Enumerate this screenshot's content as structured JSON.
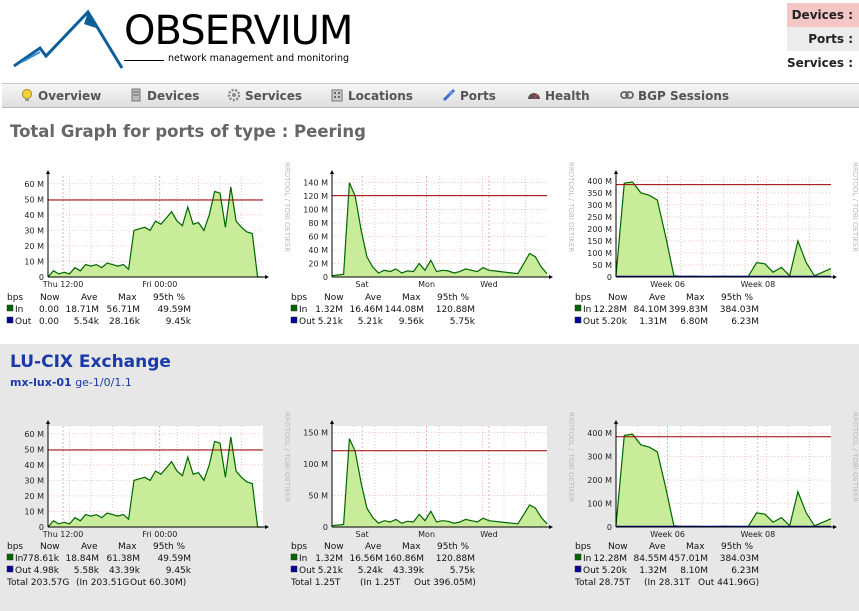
{
  "brand": {
    "name": "OBSERVIUM",
    "tagline": "network management and monitoring"
  },
  "stats": [
    {
      "label": "Devices :",
      "bg": "#f4c6c6"
    },
    {
      "label": "Ports :",
      "bg": "#ececec"
    },
    {
      "label": "Services :",
      "bg": "#ffffff"
    }
  ],
  "nav": [
    {
      "label": "Overview",
      "icon": "lightbulb-icon"
    },
    {
      "label": "Devices",
      "icon": "server-icon"
    },
    {
      "label": "Services",
      "icon": "gear-icon"
    },
    {
      "label": "Locations",
      "icon": "building-icon"
    },
    {
      "label": "Ports",
      "icon": "plug-icon"
    },
    {
      "label": "Health",
      "icon": "gauge-icon"
    },
    {
      "label": "BGP Sessions",
      "icon": "link-icon"
    }
  ],
  "page_title": "Total Graph for ports of type : Peering",
  "section": {
    "title": "LU-CIX Exchange",
    "device": "mx-lux-01",
    "port": "ge-1/0/1.1"
  },
  "colors": {
    "in_fill": "#c8ec9a",
    "in_line": "#006600",
    "out_line": "#000099",
    "p95": "#990000"
  },
  "watermark": "RRDTOOL / TOBI OETIKER",
  "legend_header": [
    "bps",
    "Now",
    "Ave",
    "Max",
    "95th %"
  ],
  "chart_data": [
    {
      "type": "area",
      "panel": "day",
      "xlabels": [
        "Thu 12:00",
        "Fri 00:00"
      ],
      "yticks": [
        "0",
        "10 M",
        "20 M",
        "30 M",
        "40 M",
        "50 M",
        "60 M"
      ],
      "ylim": [
        0,
        65
      ],
      "p95": 49.59,
      "series": [
        {
          "name": "In",
          "values": [
            0,
            4,
            2,
            3,
            2,
            6,
            4,
            8,
            7,
            8,
            6,
            9,
            8,
            7,
            8,
            5,
            30,
            31,
            32,
            30,
            36,
            34,
            38,
            42,
            36,
            33,
            45,
            34,
            35,
            30,
            40,
            55,
            54,
            32,
            58,
            36,
            32,
            29,
            28,
            0,
            0
          ]
        },
        {
          "name": "Out",
          "values": [
            0,
            0,
            0,
            0,
            0,
            0,
            0,
            0,
            0,
            0,
            0,
            0,
            0,
            0,
            0,
            0,
            0,
            0,
            0,
            0,
            0,
            0,
            0,
            0,
            0,
            0,
            0,
            0,
            0,
            0,
            0,
            0,
            0,
            0,
            0,
            0,
            0,
            0,
            0,
            0,
            0
          ]
        }
      ],
      "rows": [
        [
          "In",
          "0.00",
          "18.71M",
          "56.71M",
          "49.59M"
        ],
        [
          "Out",
          "0.00",
          "5.54k",
          "28.16k",
          "9.45k"
        ]
      ]
    },
    {
      "type": "area",
      "panel": "week",
      "xlabels": [
        "Sat",
        "Mon",
        "Wed"
      ],
      "yticks": [
        "0",
        "20 M",
        "40 M",
        "60 M",
        "80 M",
        "100 M",
        "120 M",
        "140 M"
      ],
      "ylim": [
        0,
        150
      ],
      "p95": 120.88,
      "series": [
        {
          "name": "In",
          "values": [
            2,
            3,
            4,
            140,
            120,
            70,
            30,
            15,
            6,
            10,
            8,
            12,
            6,
            9,
            8,
            20,
            10,
            25,
            8,
            10,
            9,
            6,
            8,
            12,
            10,
            8,
            14,
            10,
            9,
            8,
            7,
            6,
            5,
            20,
            35,
            30,
            15,
            5
          ]
        },
        {
          "name": "Out",
          "values": [
            0,
            0,
            0,
            0,
            0,
            0,
            0,
            0,
            0,
            0,
            0,
            0,
            0,
            0,
            0,
            0,
            0,
            0,
            0,
            0,
            0,
            0,
            0,
            0,
            0,
            0,
            0,
            0,
            0,
            0,
            0,
            0,
            0,
            0,
            0,
            0,
            0,
            0
          ]
        }
      ],
      "rows": [
        [
          "In",
          "1.32M",
          "16.46M",
          "144.08M",
          "120.88M"
        ],
        [
          "Out",
          "5.21k",
          "5.21k",
          "9.56k",
          "5.75k"
        ]
      ]
    },
    {
      "type": "area",
      "panel": "month",
      "xlabels": [
        "Week 06",
        "Week 08"
      ],
      "yticks": [
        "0",
        "50 M",
        "100 M",
        "150 M",
        "200 M",
        "250 M",
        "300 M",
        "350 M",
        "400 M"
      ],
      "ylim": [
        0,
        420
      ],
      "p95": 384.03,
      "series": [
        {
          "name": "In",
          "values": [
            5,
            390,
            395,
            350,
            340,
            320,
            170,
            5,
            2,
            3,
            2,
            1,
            2,
            3,
            2,
            2,
            3,
            60,
            55,
            20,
            40,
            5,
            150,
            60,
            5,
            20,
            35
          ]
        },
        {
          "name": "Out",
          "values": [
            3,
            3,
            3,
            3,
            3,
            3,
            3,
            3,
            3,
            3,
            3,
            3,
            3,
            3,
            3,
            3,
            3,
            3,
            3,
            3,
            3,
            3,
            3,
            3,
            3,
            3,
            3
          ]
        }
      ],
      "rows": [
        [
          "In",
          "12.28M",
          "84.10M",
          "399.83M",
          "384.03M"
        ],
        [
          "Out",
          "5.20k",
          "1.31M",
          "6.80M",
          "6.23M"
        ]
      ]
    },
    {
      "type": "area",
      "panel": "day",
      "xlabels": [
        "Thu 12:00",
        "Fri 00:00"
      ],
      "yticks": [
        "0",
        "10 M",
        "20 M",
        "30 M",
        "40 M",
        "50 M",
        "60 M"
      ],
      "ylim": [
        0,
        65
      ],
      "p95": 49.59,
      "series": [
        {
          "name": "In",
          "values": [
            0,
            4,
            2,
            3,
            2,
            6,
            4,
            8,
            7,
            8,
            6,
            9,
            8,
            7,
            8,
            5,
            30,
            31,
            32,
            30,
            36,
            34,
            38,
            42,
            36,
            33,
            45,
            34,
            35,
            30,
            40,
            55,
            54,
            32,
            58,
            36,
            32,
            29,
            28,
            0,
            0
          ]
        },
        {
          "name": "Out",
          "values": [
            0,
            0,
            0,
            0,
            0,
            0,
            0,
            0,
            0,
            0,
            0,
            0,
            0,
            0,
            0,
            0,
            0,
            0,
            0,
            0,
            0,
            0,
            0,
            0,
            0,
            0,
            0,
            0,
            0,
            0,
            0,
            0,
            0,
            0,
            0,
            0,
            0,
            0,
            0,
            0,
            0
          ]
        }
      ],
      "rows": [
        [
          "In",
          "778.61k",
          "18.84M",
          "61.38M",
          "49.59M"
        ],
        [
          "Out",
          "4.98k",
          "5.58k",
          "43.39k",
          "9.45k"
        ]
      ],
      "total": [
        "Total 203.57G",
        "(In 203.51G",
        "Out 60.30M)"
      ]
    },
    {
      "type": "area",
      "panel": "week",
      "xlabels": [
        "Sat",
        "Mon",
        "Wed"
      ],
      "yticks": [
        "0",
        "50 M",
        "100 M",
        "150 M"
      ],
      "ylim": [
        0,
        160
      ],
      "p95": 120.88,
      "series": [
        {
          "name": "In",
          "values": [
            2,
            3,
            4,
            140,
            120,
            70,
            30,
            15,
            6,
            10,
            8,
            12,
            6,
            9,
            8,
            20,
            10,
            25,
            8,
            10,
            9,
            6,
            8,
            12,
            10,
            8,
            14,
            10,
            9,
            8,
            7,
            6,
            5,
            20,
            35,
            30,
            15,
            5
          ]
        },
        {
          "name": "Out",
          "values": [
            0,
            0,
            0,
            0,
            0,
            0,
            0,
            0,
            0,
            0,
            0,
            0,
            0,
            0,
            0,
            0,
            0,
            0,
            0,
            0,
            0,
            0,
            0,
            0,
            0,
            0,
            0,
            0,
            0,
            0,
            0,
            0,
            0,
            0,
            0,
            0,
            0,
            0
          ]
        }
      ],
      "rows": [
        [
          "In",
          "1.32M",
          "16.56M",
          "160.86M",
          "120.88M"
        ],
        [
          "Out",
          "5.21k",
          "5.24k",
          "43.39k",
          "5.75k"
        ]
      ],
      "total": [
        "Total 1.25T",
        "(In 1.25T",
        "Out 396.05M)"
      ]
    },
    {
      "type": "area",
      "panel": "month",
      "xlabels": [
        "Week 06",
        "Week 08"
      ],
      "yticks": [
        "0",
        "100 M",
        "200 M",
        "300 M",
        "400 M"
      ],
      "ylim": [
        0,
        430
      ],
      "p95": 384.03,
      "series": [
        {
          "name": "In",
          "values": [
            5,
            390,
            395,
            350,
            340,
            320,
            170,
            5,
            2,
            3,
            2,
            1,
            2,
            3,
            2,
            2,
            3,
            60,
            55,
            20,
            40,
            5,
            150,
            60,
            5,
            20,
            35
          ]
        },
        {
          "name": "Out",
          "values": [
            3,
            3,
            3,
            3,
            3,
            3,
            3,
            3,
            3,
            3,
            3,
            3,
            3,
            3,
            3,
            3,
            3,
            3,
            3,
            3,
            3,
            3,
            3,
            3,
            3,
            3,
            3
          ]
        }
      ],
      "rows": [
        [
          "In",
          "12.28M",
          "84.55M",
          "457.01M",
          "384.03M"
        ],
        [
          "Out",
          "5.20k",
          "1.32M",
          "8.10M",
          "6.23M"
        ]
      ],
      "total": [
        "Total 28.75T",
        "(In 28.31T",
        "Out 441.96G)"
      ]
    }
  ]
}
